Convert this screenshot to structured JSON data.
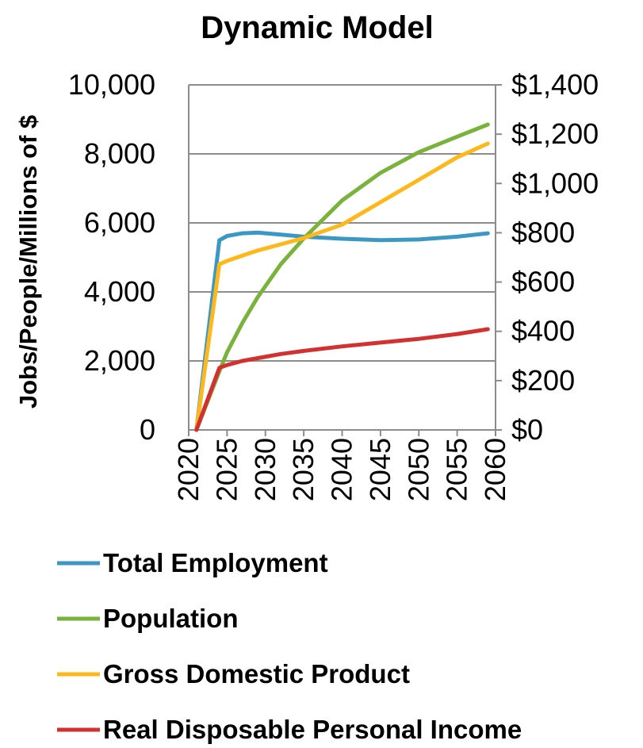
{
  "chart_data": {
    "type": "line",
    "title": "Dynamic Model",
    "ylabel": "Jobs/People/Millions of $",
    "y2label": "",
    "xlabel": "",
    "x": [
      2021,
      2024,
      2025,
      2027,
      2029,
      2032,
      2035,
      2040,
      2045,
      2050,
      2055,
      2059
    ],
    "xlim": [
      2020,
      2060
    ],
    "ylim": [
      0,
      10000
    ],
    "y2lim": [
      0,
      1400
    ],
    "grid": true,
    "legend_position": "bottom",
    "x_ticks": [
      "2020",
      "2025",
      "2030",
      "2035",
      "2040",
      "2045",
      "2050",
      "2055",
      "2060"
    ],
    "y_ticks": [
      "0",
      "2,000",
      "4,000",
      "6,000",
      "8,000",
      "10,000"
    ],
    "y2_ticks": [
      "$0",
      "$200",
      "$400",
      "$600",
      "$800",
      "$1,000",
      "$1,200",
      "$1,400"
    ],
    "series": [
      {
        "name": "Total Employment",
        "axis": "left",
        "color": "#3b97c4",
        "values": [
          0,
          5500,
          5620,
          5700,
          5720,
          5660,
          5600,
          5540,
          5500,
          5520,
          5600,
          5700
        ]
      },
      {
        "name": "Population",
        "axis": "left",
        "color": "#7ab33b",
        "values": [
          0,
          1700,
          2250,
          3100,
          3850,
          4800,
          5550,
          6650,
          7450,
          8050,
          8500,
          8850
        ]
      },
      {
        "name": "Gross Domestic Product",
        "axis": "left",
        "color": "#ffb81c",
        "values": [
          0,
          4800,
          4900,
          5050,
          5200,
          5380,
          5560,
          5950,
          6600,
          7250,
          7900,
          8300
        ]
      },
      {
        "name": "Real Disposable Personal Income",
        "axis": "left",
        "color": "#d2312f",
        "values": [
          0,
          1800,
          1880,
          2000,
          2080,
          2200,
          2290,
          2420,
          2530,
          2640,
          2780,
          2920
        ]
      }
    ]
  }
}
